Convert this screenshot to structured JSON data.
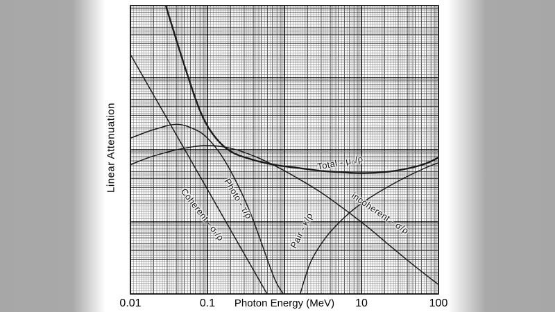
{
  "chart_data": {
    "type": "line",
    "title": "",
    "xlabel": "Photon Energy (MeV)",
    "ylabel": "Linear Attenuation",
    "x_scale": "log",
    "y_scale": "log",
    "xlim": [
      0.01,
      100
    ],
    "ylim": [
      0.001,
      10
    ],
    "y_axis_unlabeled": true,
    "grid": "dense log-log graph paper, both axes logarithmic",
    "legend": "labels drawn along curves",
    "x_tick_labels_visible": [
      "0.01",
      "0.1",
      "10",
      "100"
    ],
    "series": [
      {
        "name": "total",
        "label": "Total - μ₀/ρ",
        "points": [
          [
            0.028,
            11
          ],
          [
            0.05,
            1.5
          ],
          [
            0.08,
            0.35
          ],
          [
            0.12,
            0.16
          ],
          [
            0.2,
            0.095
          ],
          [
            0.4,
            0.072
          ],
          [
            0.8,
            0.061
          ],
          [
            1.5,
            0.056
          ],
          [
            3,
            0.051
          ],
          [
            6,
            0.0485
          ],
          [
            10,
            0.0475
          ],
          [
            20,
            0.049
          ],
          [
            40,
            0.055
          ],
          [
            70,
            0.065
          ],
          [
            100,
            0.078
          ]
        ]
      },
      {
        "name": "photoelectric",
        "label": "Photo - τ/ρ",
        "points": [
          [
            0.01,
            2.1
          ],
          [
            0.02,
            0.574
          ],
          [
            0.04,
            0.157
          ],
          [
            0.08,
            0.0429
          ],
          [
            0.16,
            0.0117
          ],
          [
            0.32,
            0.0032
          ],
          [
            0.62,
            0.00093
          ]
        ]
      },
      {
        "name": "coherent",
        "label": "Coherent - σᵣ/ρ",
        "points": [
          [
            0.01,
            0.145
          ],
          [
            0.02,
            0.19
          ],
          [
            0.04,
            0.225
          ],
          [
            0.07,
            0.19
          ],
          [
            0.1,
            0.145
          ],
          [
            0.15,
            0.085
          ],
          [
            0.22,
            0.042
          ],
          [
            0.35,
            0.0145
          ],
          [
            0.5,
            0.0052
          ],
          [
            0.75,
            0.0016
          ],
          [
            1.0,
            0.00095
          ]
        ]
      },
      {
        "name": "incoherent",
        "label": "incoherent - σ/ρ",
        "points": [
          [
            0.01,
            0.062
          ],
          [
            0.02,
            0.082
          ],
          [
            0.05,
            0.105
          ],
          [
            0.1,
            0.115
          ],
          [
            0.2,
            0.105
          ],
          [
            0.4,
            0.082
          ],
          [
            0.8,
            0.058
          ],
          [
            1.5,
            0.04
          ],
          [
            3,
            0.0255
          ],
          [
            6,
            0.015
          ],
          [
            12,
            0.0085
          ],
          [
            25,
            0.0044
          ],
          [
            50,
            0.0024
          ],
          [
            100,
            0.00135
          ]
        ]
      },
      {
        "name": "pair",
        "label": "Pair - κ/ρ",
        "points": [
          [
            1.6,
            0.001
          ],
          [
            2.2,
            0.0028
          ],
          [
            3.5,
            0.0062
          ],
          [
            6,
            0.0115
          ],
          [
            10,
            0.018
          ],
          [
            18,
            0.027
          ],
          [
            35,
            0.04
          ],
          [
            65,
            0.055
          ],
          [
            100,
            0.066
          ]
        ]
      }
    ]
  }
}
